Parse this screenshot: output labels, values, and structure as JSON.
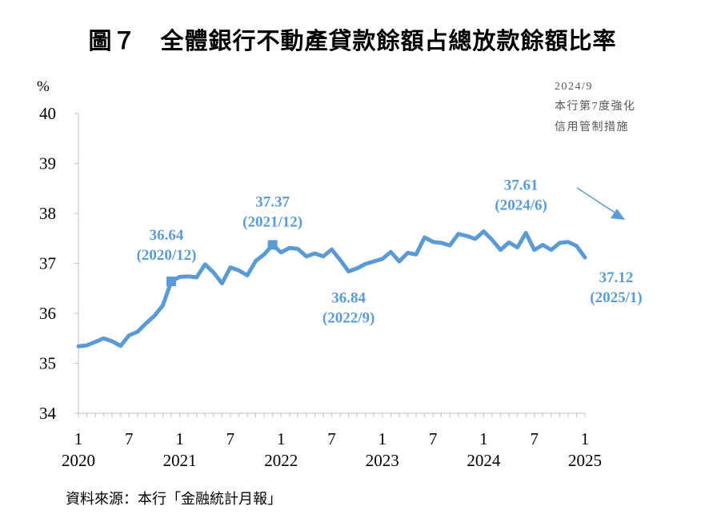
{
  "title": "圖７　全體銀行不動產貸款餘額占總放款餘額比率",
  "source": "資料來源：本行「金融統計月報」",
  "chart_data": {
    "type": "line",
    "ylabel": "%",
    "ylim": [
      34,
      40
    ],
    "yticks": [
      34,
      35,
      36,
      37,
      38,
      39,
      40
    ],
    "grid": false,
    "series_color": "#5b9bd5",
    "x_start": "2020-01",
    "x_end": "2025-01",
    "xtick_labels": [
      {
        "month": "1",
        "year": "2020",
        "date": "2020-01"
      },
      {
        "month": "7",
        "year": "",
        "date": "2020-07"
      },
      {
        "month": "1",
        "year": "2021",
        "date": "2021-01"
      },
      {
        "month": "7",
        "year": "",
        "date": "2021-07"
      },
      {
        "month": "1",
        "year": "2022",
        "date": "2022-01"
      },
      {
        "month": "7",
        "year": "",
        "date": "2022-07"
      },
      {
        "month": "1",
        "year": "2023",
        "date": "2023-01"
      },
      {
        "month": "7",
        "year": "",
        "date": "2023-07"
      },
      {
        "month": "1",
        "year": "2024",
        "date": "2024-01"
      },
      {
        "month": "7",
        "year": "",
        "date": "2024-07"
      },
      {
        "month": "1",
        "year": "2025",
        "date": "2025-01"
      }
    ],
    "series": [
      {
        "name": "",
        "x": [
          "2020-01",
          "2020-02",
          "2020-03",
          "2020-04",
          "2020-05",
          "2020-06",
          "2020-07",
          "2020-08",
          "2020-09",
          "2020-10",
          "2020-11",
          "2020-12",
          "2021-01",
          "2021-02",
          "2021-03",
          "2021-04",
          "2021-05",
          "2021-06",
          "2021-07",
          "2021-08",
          "2021-09",
          "2021-10",
          "2021-11",
          "2021-12",
          "2022-01",
          "2022-02",
          "2022-03",
          "2022-04",
          "2022-05",
          "2022-06",
          "2022-07",
          "2022-08",
          "2022-09",
          "2022-10",
          "2022-11",
          "2022-12",
          "2023-01",
          "2023-02",
          "2023-03",
          "2023-04",
          "2023-05",
          "2023-06",
          "2023-07",
          "2023-08",
          "2023-09",
          "2023-10",
          "2023-11",
          "2023-12",
          "2024-01",
          "2024-02",
          "2024-03",
          "2024-04",
          "2024-05",
          "2024-06",
          "2024-07",
          "2024-08",
          "2024-09",
          "2024-10",
          "2024-11",
          "2024-12",
          "2025-01"
        ],
        "values": [
          35.34,
          35.36,
          35.43,
          35.5,
          35.44,
          35.35,
          35.56,
          35.63,
          35.8,
          35.95,
          36.16,
          36.64,
          36.73,
          36.74,
          36.72,
          36.98,
          36.82,
          36.6,
          36.92,
          36.86,
          36.76,
          37.05,
          37.18,
          37.37,
          37.22,
          37.31,
          37.29,
          37.14,
          37.2,
          37.14,
          37.28,
          37.07,
          36.84,
          36.9,
          36.99,
          37.04,
          37.09,
          37.23,
          37.04,
          37.21,
          37.18,
          37.52,
          37.43,
          37.41,
          37.36,
          37.59,
          37.55,
          37.49,
          37.64,
          37.47,
          37.27,
          37.42,
          37.32,
          37.61,
          37.27,
          37.37,
          37.27,
          37.41,
          37.43,
          37.35,
          37.12
        ]
      }
    ],
    "markers": [
      "2020-12",
      "2021-12"
    ],
    "annotations": [
      {
        "value": "36.64",
        "period": "(2020/12)",
        "date": "2020-12"
      },
      {
        "value": "37.37",
        "period": "(2021/12)",
        "date": "2021-12"
      },
      {
        "value": "36.84",
        "period": "(2022/9)",
        "date": "2022-09"
      },
      {
        "value": "37.61",
        "period": "(2024/6)",
        "date": "2024-06"
      },
      {
        "value": "37.12",
        "period": "(2025/1)",
        "date": "2025-01"
      }
    ],
    "note": {
      "lines": [
        "2024/9",
        "本行第7度強化",
        "信用管制措施"
      ]
    }
  }
}
